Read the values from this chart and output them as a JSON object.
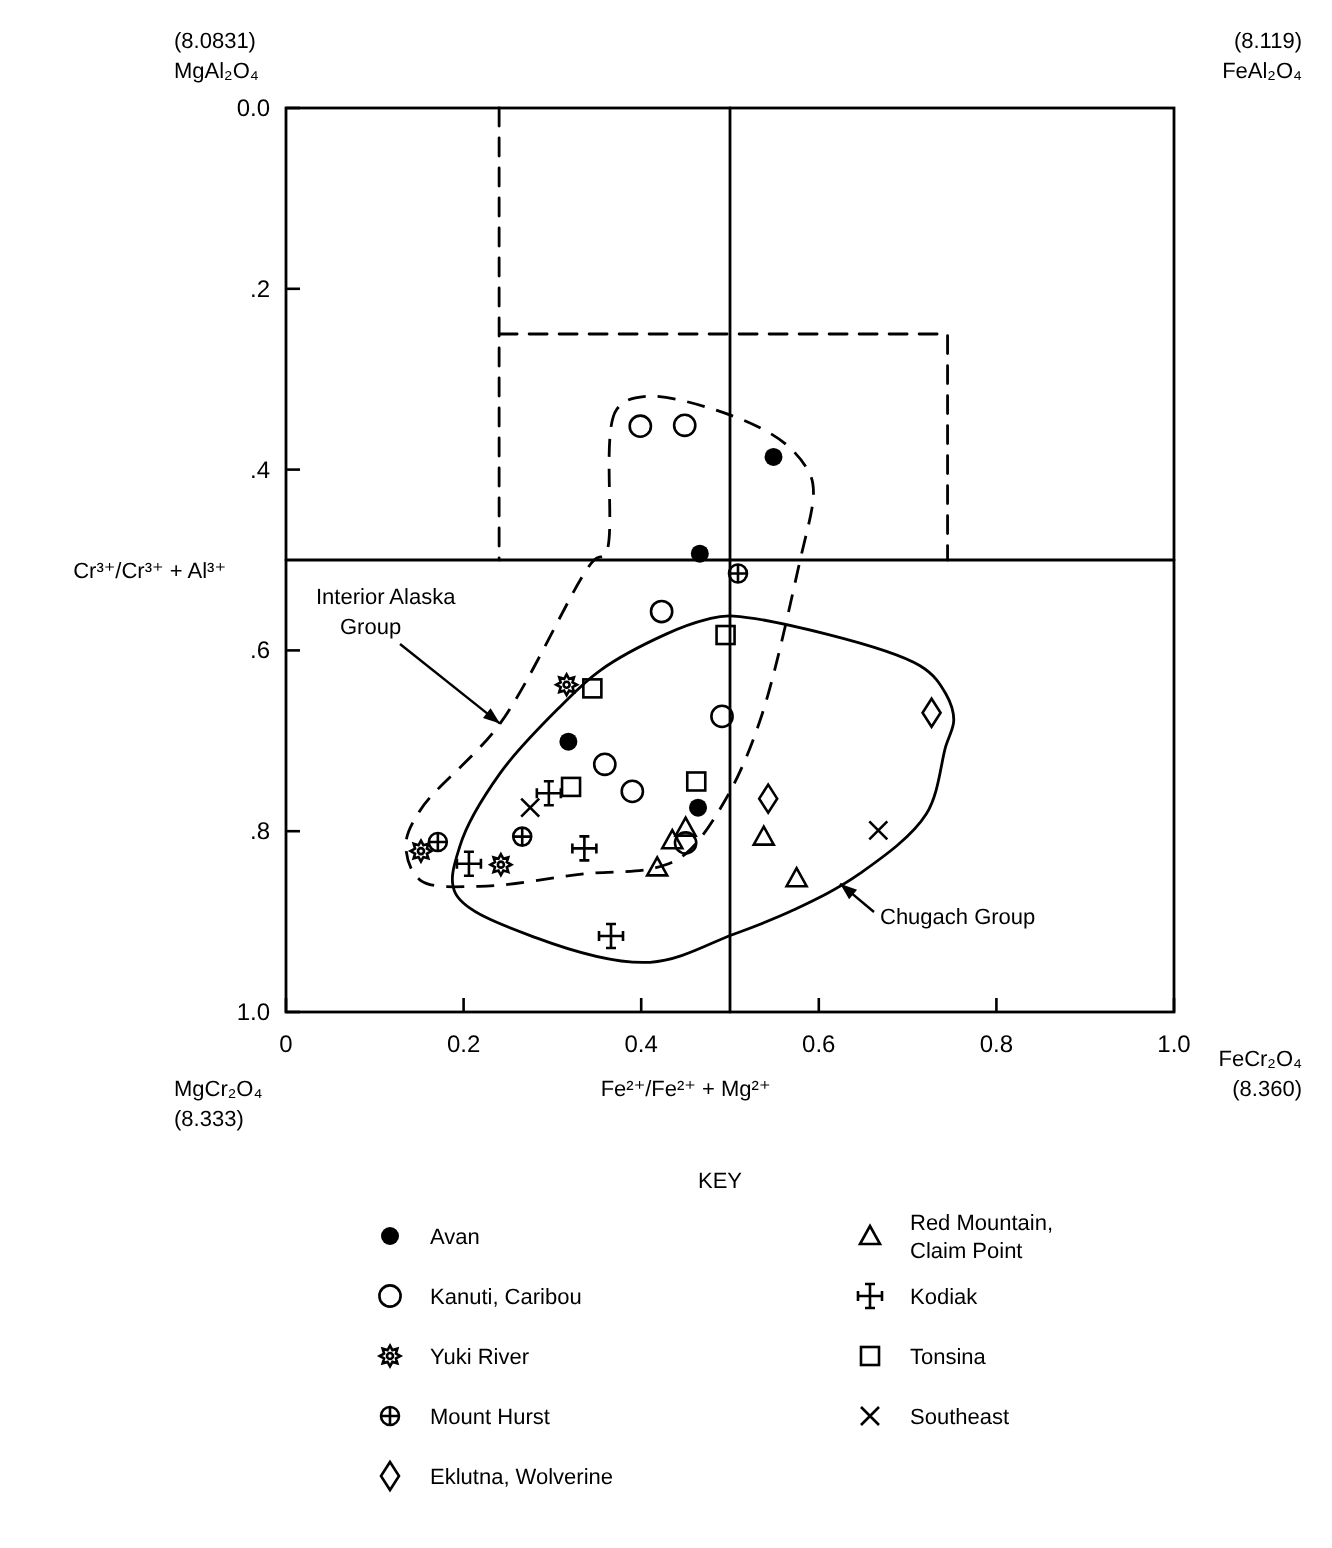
{
  "chart_data": {
    "type": "scatter",
    "xlabel": "Fe²⁺/Fe²⁺ + Mg²⁺",
    "ylabel": "Cr³⁺/Cr³⁺ + Al³⁺",
    "legend_title": "KEY",
    "legend": "bottom",
    "xlim": [
      0,
      1
    ],
    "ylim": [
      1,
      0
    ],
    "xticks": [
      0,
      0.2,
      0.4,
      0.6,
      0.8,
      {
        "value": 1,
        "label": "1.0"
      }
    ],
    "yticks": [
      {
        "value": 0,
        "label": "0.0"
      },
      {
        "value": 0.2,
        "label": ".2"
      },
      {
        "value": 0.4,
        "label": ".4"
      },
      {
        "value": 0.6,
        "label": ".6"
      },
      {
        "value": 0.8,
        "label": ".8"
      },
      {
        "value": 1,
        "label": "1.0"
      }
    ],
    "series": [
      {
        "name": "Avan",
        "color": "#000000",
        "marker": "circle",
        "x": [
          0.318,
          0.549,
          0.466,
          0.464
        ],
        "values": [
          0.701,
          0.386,
          0.493,
          0.774
        ]
      },
      {
        "name": "Kanuti, Caribou",
        "color": "#000000",
        "marker": "circle-open",
        "x": [
          0.423,
          0.359,
          0.39,
          0.399,
          0.449,
          0.491,
          0.45
        ],
        "values": [
          0.557,
          0.726,
          0.756,
          0.352,
          0.351,
          0.673,
          0.813
        ]
      },
      {
        "name": "Yuki River",
        "color": "#000000",
        "marker": "star",
        "x": [
          0.316,
          0.152,
          0.242
        ],
        "values": [
          0.638,
          0.822,
          0.837
        ]
      },
      {
        "name": "Mount Hurst",
        "color": "#000000",
        "marker": "circle-cross",
        "x": [
          0.266,
          0.171,
          0.509
        ],
        "values": [
          0.806,
          0.812,
          0.515
        ]
      },
      {
        "name": "Eklutna, Wolverine",
        "color": "#000000",
        "marker": "diamond-open",
        "x": [
          0.727,
          0.543
        ],
        "values": [
          0.669,
          0.764
        ]
      },
      {
        "name": "Red Mountain, Claim Point",
        "color": "#000000",
        "marker": "triangle-open",
        "x": [
          0.418,
          0.45,
          0.435,
          0.538,
          0.575
        ],
        "values": [
          0.84,
          0.796,
          0.81,
          0.806,
          0.852
        ]
      },
      {
        "name": "Kodiak",
        "color": "#000000",
        "marker": "cross",
        "x": [
          0.296,
          0.336,
          0.206,
          0.366
        ],
        "values": [
          0.758,
          0.819,
          0.836,
          0.916
        ]
      },
      {
        "name": "Tonsina",
        "color": "#000000",
        "marker": "square-open",
        "x": [
          0.345,
          0.321,
          0.495,
          0.462
        ],
        "values": [
          0.642,
          0.751,
          0.583,
          0.745
        ]
      },
      {
        "name": "Southeast",
        "color": "#000000",
        "marker": "x",
        "x": [
          0.275,
          0.667
        ],
        "values": [
          0.774,
          0.799
        ]
      },
      {
        "type": "line",
        "color": "#000000",
        "marker": "none",
        "line_style": "dashed",
        "x": [
          0.24,
          0.24,
          null,
          0.24,
          0.745,
          0.745
        ],
        "values": [
          0,
          0.5,
          null,
          0.25,
          0.25,
          0.5
        ]
      },
      {
        "type": "line",
        "color": "#000000",
        "marker": "none",
        "line_style": "solid",
        "x": [
          0.5,
          0.5,
          null,
          0,
          1
        ],
        "values": [
          0,
          1,
          null,
          0.5,
          0.5
        ]
      }
    ],
    "annotations": [
      "(8.0831)",
      "MgAl₂O₄",
      "(8.119)",
      "FeAl₂O₄",
      "MgCr₂O₄",
      "(8.333)",
      "FeCr₂O₄",
      "(8.360)",
      "Interior Alaska Group",
      "Chugach Group"
    ]
  }
}
